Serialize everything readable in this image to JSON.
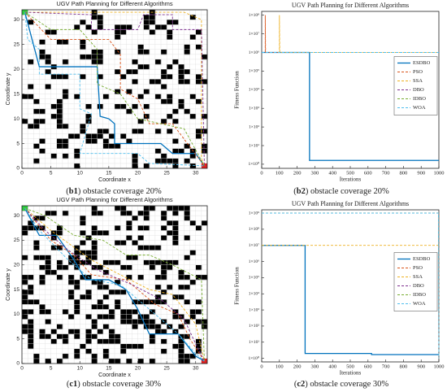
{
  "chart_data": [
    {
      "type": "map",
      "title": "UGV Path Planning for Different Algorithms",
      "xlabel": "Coordinate x",
      "ylabel": "Coordinate y",
      "xlim": [
        0,
        32
      ],
      "ylim": [
        0,
        32
      ],
      "xticks": [
        0,
        5,
        10,
        15,
        20,
        25,
        30
      ],
      "yticks": [
        0,
        5,
        10,
        15,
        20,
        25,
        30
      ],
      "caption": [
        "(",
        "b1",
        ") obstacle coverage 20%"
      ],
      "series": [
        {
          "name": "ESDBO",
          "color": "#0072BD",
          "linestyle": "solid",
          "x": [
            0.5,
            3,
            13,
            13.5,
            15,
            16,
            16,
            24,
            26,
            30,
            31.5
          ],
          "values": [
            31.5,
            20.5,
            20.5,
            10.5,
            10,
            9,
            5,
            5,
            3,
            3,
            0.5
          ]
        },
        {
          "name": "PSO",
          "color": "#D95319",
          "linestyle": "dashed",
          "x": [
            0.5,
            5,
            15,
            17,
            17,
            20,
            22,
            26,
            31.5
          ],
          "values": [
            31.5,
            26,
            26,
            23,
            16,
            14,
            9,
            9,
            0.5
          ]
        },
        {
          "name": "SSA",
          "color": "#EDB120",
          "linestyle": "dashed",
          "x": [
            0.5,
            28,
            31,
            31,
            31.5
          ],
          "values": [
            31.5,
            31.5,
            30,
            2,
            0.5
          ]
        },
        {
          "name": "DBO",
          "color": "#7E2F8E",
          "linestyle": "dashed",
          "x": [
            0.5,
            12,
            12,
            20,
            21,
            26,
            26,
            31,
            31.5
          ],
          "values": [
            31.5,
            31,
            28,
            28,
            31,
            31,
            28,
            28,
            0.5
          ]
        },
        {
          "name": "IDBO",
          "color": "#77AC30",
          "linestyle": "dashed",
          "x": [
            0.5,
            5,
            10,
            13,
            13,
            17,
            20,
            28,
            31.5
          ],
          "values": [
            31.5,
            28,
            28,
            24,
            17,
            15,
            10,
            8,
            0.5
          ]
        },
        {
          "name": "WOA",
          "color": "#4DBEEE",
          "linestyle": "dashed",
          "x": [
            0.5,
            1,
            3,
            3,
            10,
            10,
            12,
            10,
            20,
            22,
            31.5
          ],
          "values": [
            31.5,
            26,
            24,
            19,
            19,
            12,
            11,
            3,
            3,
            1,
            0.5
          ]
        }
      ]
    },
    {
      "type": "line",
      "title": "UGV Path Planning for Different Algorithms",
      "xlabel": "Iterations",
      "ylabel": "Fitness Function",
      "yscale": "log",
      "legend": "right",
      "xlim": [
        0,
        1000
      ],
      "ylim": [
        0.6,
        160000000
      ],
      "xticks": [
        0,
        100,
        200,
        300,
        400,
        500,
        600,
        700,
        800,
        900,
        1000
      ],
      "yticks": [
        {
          "value": 1,
          "label": "1×10⁰"
        },
        {
          "value": 10,
          "label": "1×10¹"
        },
        {
          "value": 100,
          "label": "1×10²"
        },
        {
          "value": 1000,
          "label": "1×10³"
        },
        {
          "value": 10000,
          "label": "1×10⁴"
        },
        {
          "value": 100000,
          "label": "1×10⁵"
        },
        {
          "value": 1000000,
          "label": "1×10⁶"
        },
        {
          "value": 10000000,
          "label": "1×10⁷"
        },
        {
          "value": 100000000,
          "label": "1×10⁸"
        }
      ],
      "caption": [
        "(",
        "b2",
        ") obstacle coverage 20%"
      ],
      "series": [
        {
          "name": "ESDBO",
          "color": "#0072BD",
          "linestyle": "solid",
          "x": [
            0,
            270,
            270,
            1000
          ],
          "values": [
            1000000,
            1000000,
            1.6,
            1.6
          ]
        },
        {
          "name": "PSO",
          "color": "#D95319",
          "linestyle": "dashed",
          "x": [
            0,
            20,
            20,
            22,
            1000
          ],
          "values": [
            1000000,
            1000000,
            100000000,
            1000000,
            1000000
          ]
        },
        {
          "name": "SSA",
          "color": "#EDB120",
          "linestyle": "dashed",
          "x": [
            0,
            100,
            100,
            102,
            1000
          ],
          "values": [
            1000000,
            1000000,
            100000000,
            1000000,
            1000000
          ]
        },
        {
          "name": "DBO",
          "color": "#7E2F8E",
          "linestyle": "dashed",
          "x": [
            0,
            1000
          ],
          "values": [
            1000000,
            1000000
          ]
        },
        {
          "name": "IDBO",
          "color": "#77AC30",
          "linestyle": "dashed",
          "x": [
            0,
            1000
          ],
          "values": [
            1000000,
            1000000
          ]
        },
        {
          "name": "WOA",
          "color": "#4DBEEE",
          "linestyle": "dashed",
          "x": [
            0,
            1000
          ],
          "values": [
            1000000,
            1000000
          ]
        }
      ]
    },
    {
      "type": "map",
      "title": "UGV Path Planning for Different Algorithms",
      "xlabel": "Coordinate x",
      "ylabel": "Coordinate y",
      "xlim": [
        0,
        32
      ],
      "ylim": [
        0,
        32
      ],
      "xticks": [
        0,
        5,
        10,
        15,
        20,
        25,
        30
      ],
      "yticks": [
        0,
        5,
        10,
        15,
        20,
        25,
        30
      ],
      "caption": [
        "(",
        "c1",
        ") obstacle coverage 30%"
      ],
      "series": [
        {
          "name": "ESDBO",
          "color": "#0072BD",
          "linestyle": "solid",
          "x": [
            0.5,
            3,
            6,
            9,
            11,
            15,
            18,
            20,
            22,
            27,
            29,
            30,
            31.5
          ],
          "values": [
            31.5,
            26,
            26,
            21,
            17,
            17,
            15,
            11,
            6,
            6,
            3,
            1.5,
            0.5
          ]
        },
        {
          "name": "PSO",
          "color": "#D95319",
          "linestyle": "dashed",
          "x": [
            0.5,
            5,
            9,
            12,
            18,
            23,
            27,
            29,
            31.5
          ],
          "values": [
            31.5,
            25,
            22,
            18,
            17,
            12,
            10,
            5,
            0.5
          ]
        },
        {
          "name": "SSA",
          "color": "#EDB120",
          "linestyle": "dashed",
          "x": [
            0.5,
            5,
            12,
            17,
            22,
            26,
            30,
            31.5
          ],
          "values": [
            31.5,
            27,
            21,
            18,
            15,
            14,
            8,
            0.5
          ]
        },
        {
          "name": "DBO",
          "color": "#7E2F8E",
          "linestyle": "dashed",
          "x": [
            0.5,
            4,
            8,
            13,
            19,
            24,
            28,
            30,
            31.5
          ],
          "values": [
            31.5,
            27,
            23,
            19,
            16,
            13,
            9,
            4,
            0.5
          ]
        },
        {
          "name": "IDBO",
          "color": "#77AC30",
          "linestyle": "dashed",
          "x": [
            0.5,
            4,
            9,
            14,
            18,
            22,
            26,
            31,
            31.5
          ],
          "values": [
            31.5,
            30,
            26,
            25,
            22,
            22,
            20,
            17,
            0.5
          ]
        },
        {
          "name": "WOA",
          "color": "#4DBEEE",
          "linestyle": "dashed",
          "x": [
            0.5,
            3,
            8,
            12,
            17,
            21,
            27,
            30,
            31.5
          ],
          "values": [
            31.5,
            27,
            21,
            17,
            16,
            12,
            6,
            2,
            0.5
          ]
        }
      ]
    },
    {
      "type": "line",
      "title": "UGV Path Planning for Different Algorithms",
      "xlabel": "Iterations",
      "ylabel": "Fitness Function",
      "yscale": "log",
      "legend": "right",
      "xlim": [
        0,
        1000
      ],
      "ylim": [
        0.6,
        1600000000
      ],
      "xticks": [
        0,
        100,
        200,
        300,
        400,
        500,
        600,
        700,
        800,
        900,
        1000
      ],
      "yticks": [
        {
          "value": 1,
          "label": "1×10⁰"
        },
        {
          "value": 10,
          "label": "1×10¹"
        },
        {
          "value": 100,
          "label": "1×10²"
        },
        {
          "value": 1000,
          "label": "1×10³"
        },
        {
          "value": 10000,
          "label": "1×10⁴"
        },
        {
          "value": 100000,
          "label": "1×10⁵"
        },
        {
          "value": 1000000,
          "label": "1×10⁶"
        },
        {
          "value": 10000000,
          "label": "1×10⁷"
        },
        {
          "value": 100000000,
          "label": "1×10⁸"
        },
        {
          "value": 1000000000,
          "label": "1×10⁹"
        }
      ],
      "caption": [
        "(",
        "c2",
        ") obstacle coverage 30%"
      ],
      "series": [
        {
          "name": "ESDBO",
          "color": "#0072BD",
          "linestyle": "solid",
          "x": [
            0,
            245,
            245,
            620,
            620,
            1000
          ],
          "values": [
            10000000,
            10000000,
            2,
            2,
            1.7,
            1.7
          ]
        },
        {
          "name": "PSO",
          "color": "#D95319",
          "linestyle": "dashed",
          "x": [
            0,
            998,
            1000
          ],
          "values": [
            1000000000,
            1000000000,
            1
          ]
        },
        {
          "name": "SSA",
          "color": "#EDB120",
          "linestyle": "dashed",
          "x": [
            0,
            1000
          ],
          "values": [
            10000000,
            10000000
          ]
        },
        {
          "name": "DBO",
          "color": "#7E2F8E",
          "linestyle": "dashed",
          "x": [
            0,
            998,
            1000
          ],
          "values": [
            1000000000,
            1000000000,
            1
          ]
        },
        {
          "name": "IDBO",
          "color": "#77AC30",
          "linestyle": "dashed",
          "x": [
            0,
            998,
            1000
          ],
          "values": [
            1000000000,
            1000000000,
            1
          ]
        },
        {
          "name": "WOA",
          "color": "#4DBEEE",
          "linestyle": "dashed",
          "x": [
            0,
            998,
            1000
          ],
          "values": [
            1000000000,
            1000000000,
            1
          ]
        }
      ]
    }
  ]
}
